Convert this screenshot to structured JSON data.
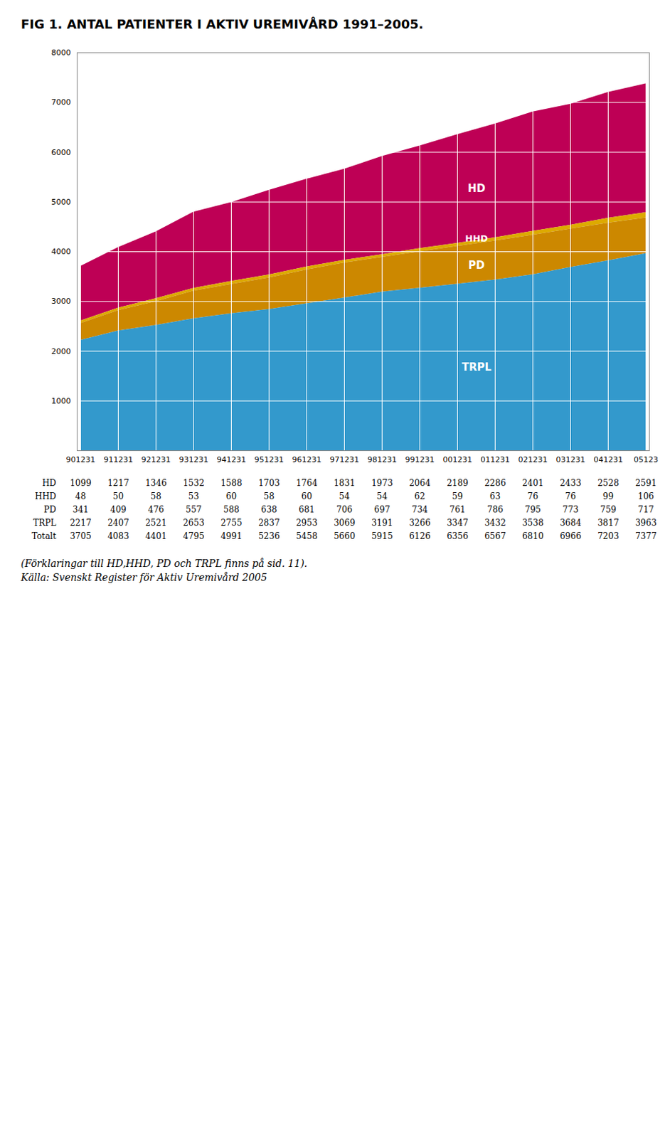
{
  "chart_data": {
    "type": "area",
    "title": "FIG 1. ANTAL PATIENTER I AKTIV UREMIVÅRD 1991–2005.",
    "categories": [
      "901231",
      "911231",
      "921231",
      "931231",
      "941231",
      "951231",
      "961231",
      "971231",
      "981231",
      "991231",
      "001231",
      "011231",
      "021231",
      "031231",
      "041231",
      "05123"
    ],
    "series": [
      {
        "name": "HD",
        "color": "#be0055",
        "values": [
          1099,
          1217,
          1346,
          1532,
          1588,
          1703,
          1764,
          1831,
          1973,
          2064,
          2189,
          2286,
          2401,
          2433,
          2528,
          2591
        ]
      },
      {
        "name": "HHD",
        "color": "#ddaa00",
        "values": [
          48,
          50,
          58,
          53,
          60,
          58,
          60,
          54,
          54,
          62,
          59,
          63,
          76,
          76,
          99,
          106
        ]
      },
      {
        "name": "PD",
        "color": "#cc8800",
        "values": [
          341,
          409,
          476,
          557,
          588,
          638,
          681,
          706,
          697,
          734,
          761,
          786,
          795,
          773,
          759,
          717
        ]
      },
      {
        "name": "TRPL",
        "color": "#3399cc",
        "values": [
          2217,
          2407,
          2521,
          2653,
          2755,
          2837,
          2953,
          3069,
          3191,
          3266,
          3347,
          3432,
          3538,
          3684,
          3817,
          3963
        ]
      }
    ],
    "total": {
      "label": "Totalt",
      "values": [
        3705,
        4083,
        4401,
        4795,
        4991,
        5236,
        5458,
        5660,
        5915,
        6126,
        6356,
        6567,
        6810,
        6966,
        7203,
        7377
      ]
    },
    "stacked": true,
    "ylim": [
      0,
      8000
    ],
    "yticks": [
      1000,
      2000,
      3000,
      4000,
      5000,
      6000,
      7000,
      8000
    ],
    "grid": true,
    "data_labels": true,
    "annotations": [
      "(Förklaringar till HD,HHD, PD och TRPL finns på sid. 11).",
      "Källa: Svenskt Register för Aktiv Uremivård 2005"
    ]
  }
}
